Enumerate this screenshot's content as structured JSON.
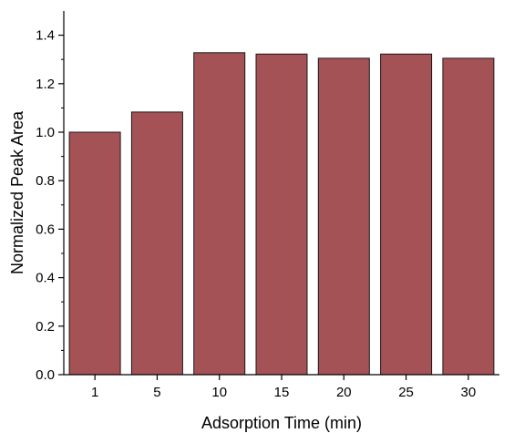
{
  "chart_data": {
    "type": "bar",
    "title": "",
    "xlabel": "Adsorption Time (min)",
    "ylabel": "Normalized Peak Area",
    "categories": [
      "1",
      "5",
      "10",
      "15",
      "20",
      "25",
      "30"
    ],
    "values": [
      1.0,
      1.083,
      1.328,
      1.322,
      1.305,
      1.322,
      1.305
    ],
    "ylim": [
      0,
      1.5
    ],
    "yticks": [
      0.0,
      0.2,
      0.4,
      0.6,
      0.8,
      1.0,
      1.2,
      1.4
    ],
    "ytick_labels": [
      "0.0",
      "0.2",
      "0.4",
      "0.6",
      "0.8",
      "1.0",
      "1.2",
      "1.4"
    ],
    "grid": false,
    "legend": "none",
    "colors": {
      "bar_fill": "#a55257",
      "bar_edge": "#1a1a1a",
      "axis": "#000000"
    }
  }
}
